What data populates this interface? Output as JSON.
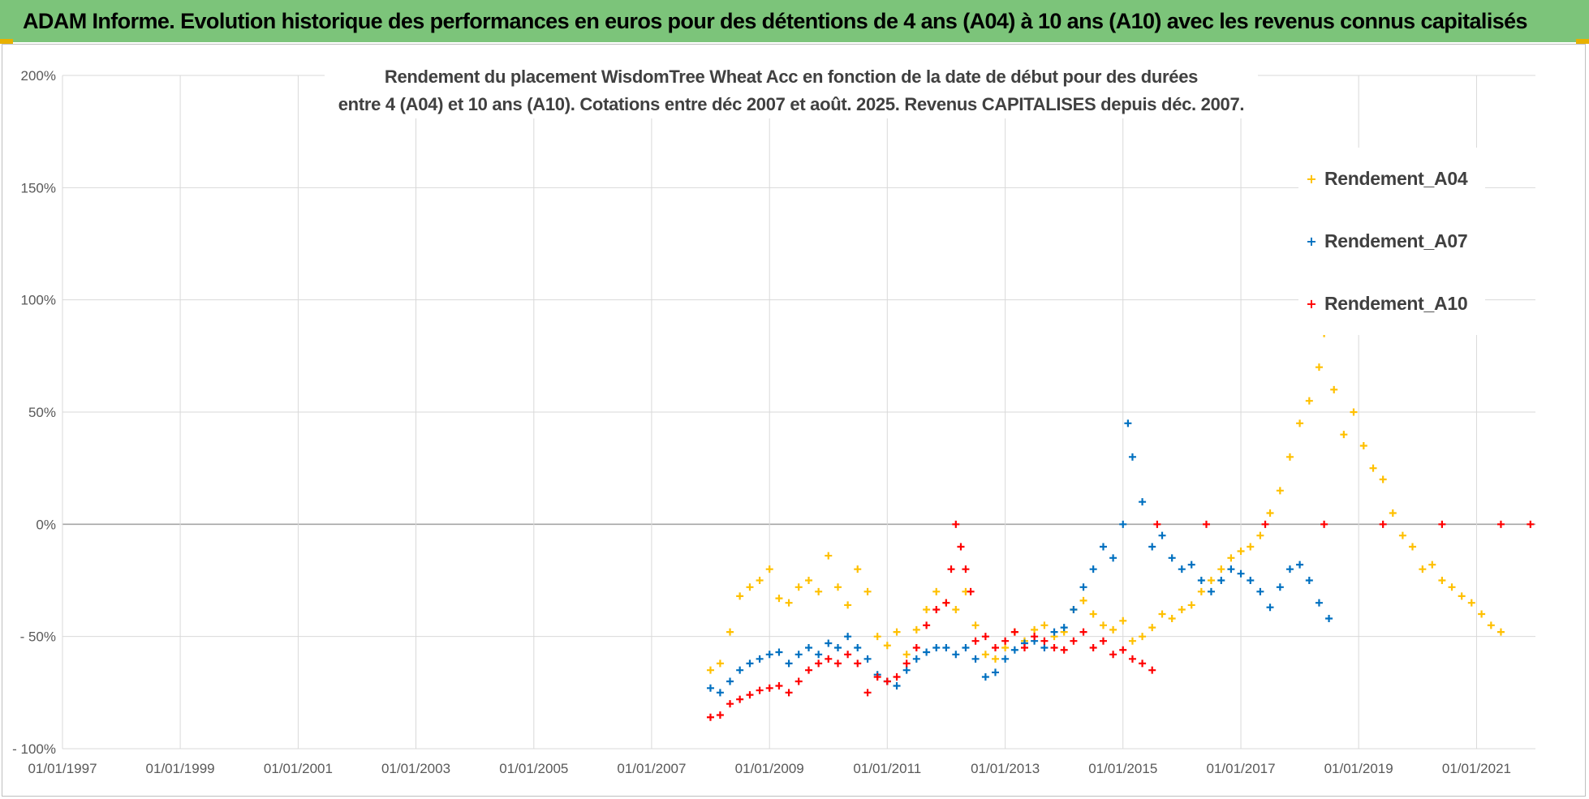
{
  "banner": {
    "title": "ADAM Informe. Evolution historique des performances en euros pour des détentions de 4 ans (A04) à 10 ans (A10) avec les revenus connus capitalisés",
    "background": "#7cc47a"
  },
  "chart_data": {
    "type": "scatter",
    "title_lines": [
      "Rendement du placement WisdomTree Wheat Acc en fonction de la date de début pour des durées",
      "entre 4 (A04) et 10 ans (A10). Cotations entre déc 2007 et août. 2025. Revenus CAPITALISES depuis déc. 2007."
    ],
    "xlabel": "",
    "ylabel": "",
    "x_range": [
      "1997-01-01",
      "2022-01-01"
    ],
    "x_ticks": [
      "01/01/1997",
      "01/01/1999",
      "01/01/2001",
      "01/01/2003",
      "01/01/2005",
      "01/01/2007",
      "01/01/2009",
      "01/01/2011",
      "01/01/2013",
      "01/01/2015",
      "01/01/2017",
      "01/01/2019",
      "01/01/2021"
    ],
    "y_range": [
      -100,
      200
    ],
    "y_ticks": [
      "200%",
      "150%",
      "100%",
      "50%",
      "0%",
      "- 50%",
      "- 100%"
    ],
    "grid": true,
    "legend_position": "top-right",
    "marker": "+",
    "series": [
      {
        "name": "Rendement_A04",
        "color": "#ffc000",
        "points": [
          [
            "2008-01-01",
            -65
          ],
          [
            "2008-03-01",
            -62
          ],
          [
            "2008-05-01",
            -48
          ],
          [
            "2008-07-01",
            -32
          ],
          [
            "2008-09-01",
            -28
          ],
          [
            "2008-11-01",
            -25
          ],
          [
            "2009-01-01",
            -20
          ],
          [
            "2009-03-01",
            -33
          ],
          [
            "2009-05-01",
            -35
          ],
          [
            "2009-07-01",
            -28
          ],
          [
            "2009-09-01",
            -25
          ],
          [
            "2009-11-01",
            -30
          ],
          [
            "2010-01-01",
            -14
          ],
          [
            "2010-03-01",
            -28
          ],
          [
            "2010-05-01",
            -36
          ],
          [
            "2010-07-01",
            -20
          ],
          [
            "2010-09-01",
            -30
          ],
          [
            "2010-11-01",
            -50
          ],
          [
            "2011-01-01",
            -54
          ],
          [
            "2011-03-01",
            -48
          ],
          [
            "2011-05-01",
            -58
          ],
          [
            "2011-07-01",
            -47
          ],
          [
            "2011-09-01",
            -38
          ],
          [
            "2011-11-01",
            -30
          ],
          [
            "2012-01-01",
            -35
          ],
          [
            "2012-03-01",
            -38
          ],
          [
            "2012-05-01",
            -30
          ],
          [
            "2012-07-01",
            -45
          ],
          [
            "2012-09-01",
            -58
          ],
          [
            "2012-11-01",
            -60
          ],
          [
            "2013-01-01",
            -55
          ],
          [
            "2013-03-01",
            -48
          ],
          [
            "2013-05-01",
            -52
          ],
          [
            "2013-07-01",
            -47
          ],
          [
            "2013-09-01",
            -45
          ],
          [
            "2013-11-01",
            -50
          ],
          [
            "2014-01-01",
            -48
          ],
          [
            "2014-03-01",
            -38
          ],
          [
            "2014-05-01",
            -34
          ],
          [
            "2014-07-01",
            -40
          ],
          [
            "2014-09-01",
            -45
          ],
          [
            "2014-11-01",
            -47
          ],
          [
            "2015-01-01",
            -43
          ],
          [
            "2015-03-01",
            -52
          ],
          [
            "2015-05-01",
            -50
          ],
          [
            "2015-07-01",
            -46
          ],
          [
            "2015-09-01",
            -40
          ],
          [
            "2015-11-01",
            -42
          ],
          [
            "2016-01-01",
            -38
          ],
          [
            "2016-03-01",
            -36
          ],
          [
            "2016-05-01",
            -30
          ],
          [
            "2016-07-01",
            -25
          ],
          [
            "2016-09-01",
            -20
          ],
          [
            "2016-11-01",
            -15
          ],
          [
            "2017-01-01",
            -12
          ],
          [
            "2017-03-01",
            -10
          ],
          [
            "2017-05-01",
            -5
          ],
          [
            "2017-07-01",
            5
          ],
          [
            "2017-09-01",
            15
          ],
          [
            "2017-11-01",
            30
          ],
          [
            "2018-01-01",
            45
          ],
          [
            "2018-03-01",
            55
          ],
          [
            "2018-05-01",
            70
          ],
          [
            "2018-06-01",
            85
          ],
          [
            "2018-08-01",
            60
          ],
          [
            "2018-10-01",
            40
          ],
          [
            "2018-12-01",
            50
          ],
          [
            "2019-02-01",
            35
          ],
          [
            "2019-04-01",
            25
          ],
          [
            "2019-06-01",
            20
          ],
          [
            "2019-08-01",
            5
          ],
          [
            "2019-10-01",
            -5
          ],
          [
            "2019-12-01",
            -10
          ],
          [
            "2020-02-01",
            -20
          ],
          [
            "2020-04-01",
            -18
          ],
          [
            "2020-06-01",
            -25
          ],
          [
            "2020-08-01",
            -28
          ],
          [
            "2020-10-01",
            -32
          ],
          [
            "2020-12-01",
            -35
          ],
          [
            "2021-02-01",
            -40
          ],
          [
            "2021-04-01",
            -45
          ],
          [
            "2021-06-01",
            -48
          ]
        ]
      },
      {
        "name": "Rendement_A07",
        "color": "#0070c0",
        "points": [
          [
            "2008-01-01",
            -73
          ],
          [
            "2008-03-01",
            -75
          ],
          [
            "2008-05-01",
            -70
          ],
          [
            "2008-07-01",
            -65
          ],
          [
            "2008-09-01",
            -62
          ],
          [
            "2008-11-01",
            -60
          ],
          [
            "2009-01-01",
            -58
          ],
          [
            "2009-03-01",
            -57
          ],
          [
            "2009-05-01",
            -62
          ],
          [
            "2009-07-01",
            -58
          ],
          [
            "2009-09-01",
            -55
          ],
          [
            "2009-11-01",
            -58
          ],
          [
            "2010-01-01",
            -53
          ],
          [
            "2010-03-01",
            -55
          ],
          [
            "2010-05-01",
            -50
          ],
          [
            "2010-07-01",
            -55
          ],
          [
            "2010-09-01",
            -60
          ],
          [
            "2010-11-01",
            -67
          ],
          [
            "2011-01-01",
            -70
          ],
          [
            "2011-03-01",
            -72
          ],
          [
            "2011-05-01",
            -65
          ],
          [
            "2011-07-01",
            -60
          ],
          [
            "2011-09-01",
            -57
          ],
          [
            "2011-11-01",
            -55
          ],
          [
            "2012-01-01",
            -55
          ],
          [
            "2012-03-01",
            -58
          ],
          [
            "2012-05-01",
            -55
          ],
          [
            "2012-07-01",
            -60
          ],
          [
            "2012-09-01",
            -68
          ],
          [
            "2012-11-01",
            -66
          ],
          [
            "2013-01-01",
            -60
          ],
          [
            "2013-03-01",
            -56
          ],
          [
            "2013-05-01",
            -53
          ],
          [
            "2013-07-01",
            -52
          ],
          [
            "2013-09-01",
            -55
          ],
          [
            "2013-11-01",
            -48
          ],
          [
            "2014-01-01",
            -46
          ],
          [
            "2014-03-01",
            -38
          ],
          [
            "2014-05-01",
            -28
          ],
          [
            "2014-07-01",
            -20
          ],
          [
            "2014-09-01",
            -10
          ],
          [
            "2014-11-01",
            -15
          ],
          [
            "2015-01-01",
            0
          ],
          [
            "2015-02-01",
            45
          ],
          [
            "2015-03-01",
            30
          ],
          [
            "2015-05-01",
            10
          ],
          [
            "2015-07-01",
            -10
          ],
          [
            "2015-09-01",
            -5
          ],
          [
            "2015-11-01",
            -15
          ],
          [
            "2016-01-01",
            -20
          ],
          [
            "2016-03-01",
            -18
          ],
          [
            "2016-05-01",
            -25
          ],
          [
            "2016-07-01",
            -30
          ],
          [
            "2016-09-01",
            -25
          ],
          [
            "2016-11-01",
            -20
          ],
          [
            "2017-01-01",
            -22
          ],
          [
            "2017-03-01",
            -25
          ],
          [
            "2017-05-01",
            -30
          ],
          [
            "2017-07-01",
            -37
          ],
          [
            "2017-09-01",
            -28
          ],
          [
            "2017-11-01",
            -20
          ],
          [
            "2018-01-01",
            -18
          ],
          [
            "2018-03-01",
            -25
          ],
          [
            "2018-05-01",
            -35
          ],
          [
            "2018-07-01",
            -42
          ]
        ]
      },
      {
        "name": "Rendement_A10",
        "color": "#ff0000",
        "points": [
          [
            "2008-01-01",
            -86
          ],
          [
            "2008-03-01",
            -85
          ],
          [
            "2008-05-01",
            -80
          ],
          [
            "2008-07-01",
            -78
          ],
          [
            "2008-09-01",
            -76
          ],
          [
            "2008-11-01",
            -74
          ],
          [
            "2009-01-01",
            -73
          ],
          [
            "2009-03-01",
            -72
          ],
          [
            "2009-05-01",
            -75
          ],
          [
            "2009-07-01",
            -70
          ],
          [
            "2009-09-01",
            -65
          ],
          [
            "2009-11-01",
            -62
          ],
          [
            "2010-01-01",
            -60
          ],
          [
            "2010-03-01",
            -62
          ],
          [
            "2010-05-01",
            -58
          ],
          [
            "2010-07-01",
            -62
          ],
          [
            "2010-09-01",
            -75
          ],
          [
            "2010-11-01",
            -68
          ],
          [
            "2011-01-01",
            -70
          ],
          [
            "2011-03-01",
            -68
          ],
          [
            "2011-05-01",
            -62
          ],
          [
            "2011-07-01",
            -55
          ],
          [
            "2011-09-01",
            -45
          ],
          [
            "2011-11-01",
            -38
          ],
          [
            "2012-01-01",
            -35
          ],
          [
            "2012-02-01",
            -20
          ],
          [
            "2012-03-01",
            0
          ],
          [
            "2012-04-01",
            -10
          ],
          [
            "2012-05-01",
            -20
          ],
          [
            "2012-06-01",
            -30
          ],
          [
            "2012-07-01",
            -52
          ],
          [
            "2012-09-01",
            -50
          ],
          [
            "2012-11-01",
            -55
          ],
          [
            "2013-01-01",
            -52
          ],
          [
            "2013-03-01",
            -48
          ],
          [
            "2013-05-01",
            -55
          ],
          [
            "2013-07-01",
            -50
          ],
          [
            "2013-09-01",
            -52
          ],
          [
            "2013-11-01",
            -55
          ],
          [
            "2014-01-01",
            -56
          ],
          [
            "2014-03-01",
            -52
          ],
          [
            "2014-05-01",
            -48
          ],
          [
            "2014-07-01",
            -55
          ],
          [
            "2014-09-01",
            -52
          ],
          [
            "2014-11-01",
            -58
          ],
          [
            "2015-01-01",
            -56
          ],
          [
            "2015-03-01",
            -60
          ],
          [
            "2015-05-01",
            -62
          ],
          [
            "2015-07-01",
            -65
          ],
          [
            "2015-08-01",
            0
          ],
          [
            "2016-06-01",
            0
          ],
          [
            "2017-06-01",
            0
          ],
          [
            "2018-06-01",
            0
          ],
          [
            "2019-06-01",
            0
          ],
          [
            "2020-06-01",
            0
          ],
          [
            "2021-06-01",
            0
          ],
          [
            "2021-12-01",
            0
          ]
        ]
      }
    ]
  }
}
